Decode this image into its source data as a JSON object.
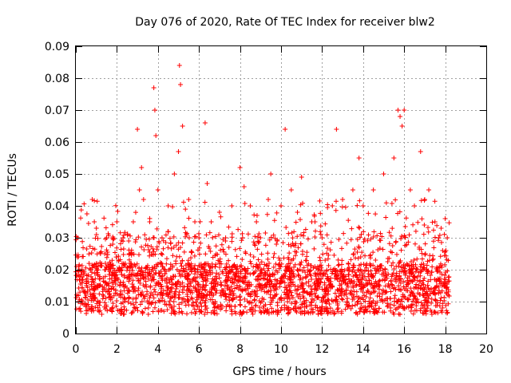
{
  "chart_data": {
    "type": "scatter",
    "title": "Day 076 of 2020, Rate Of TEC Index for receiver blw2",
    "xlabel": "GPS time / hours",
    "ylabel": "ROTI / TECUs",
    "xlim": [
      0,
      20
    ],
    "ylim": [
      0,
      0.09
    ],
    "xticks": [
      "0",
      "2",
      "4",
      "6",
      "8",
      "10",
      "12",
      "14",
      "16",
      "18",
      "20"
    ],
    "yticks": [
      "0",
      "0.01",
      "0.02",
      "0.03",
      "0.04",
      "0.05",
      "0.06",
      "0.07",
      "0.08",
      "0.09"
    ],
    "grid": true,
    "marker": "+",
    "color": "#ff0000",
    "data_range_hours": [
      0,
      18.2
    ],
    "series": [
      {
        "name": "ROTI",
        "note": "dense scatter; representative points read from the figure",
        "x": [
          0.1,
          0.3,
          0.5,
          0.8,
          0.9,
          1.0,
          1.2,
          1.5,
          1.8,
          2.0,
          2.3,
          2.6,
          2.8,
          3.0,
          3.1,
          3.2,
          3.3,
          3.6,
          3.8,
          3.85,
          3.9,
          4.0,
          4.2,
          4.5,
          4.8,
          5.0,
          5.05,
          5.1,
          5.2,
          5.5,
          5.8,
          6.0,
          6.3,
          6.4,
          6.6,
          7.0,
          7.3,
          7.6,
          8.0,
          8.2,
          8.5,
          8.8,
          9.0,
          9.5,
          10.0,
          10.2,
          10.5,
          10.8,
          11.0,
          11.5,
          12.0,
          12.5,
          12.7,
          13.0,
          13.5,
          13.8,
          14.0,
          14.5,
          15.0,
          15.5,
          15.7,
          15.8,
          15.9,
          16.0,
          16.3,
          16.5,
          16.8,
          17.0,
          17.2,
          17.5,
          17.8,
          18.0,
          18.1
        ],
        "y": [
          0.03,
          0.02,
          0.012,
          0.042,
          0.035,
          0.033,
          0.025,
          0.03,
          0.028,
          0.035,
          0.03,
          0.025,
          0.035,
          0.064,
          0.045,
          0.052,
          0.042,
          0.035,
          0.077,
          0.07,
          0.062,
          0.045,
          0.03,
          0.04,
          0.05,
          0.057,
          0.084,
          0.078,
          0.065,
          0.042,
          0.035,
          0.03,
          0.066,
          0.047,
          0.035,
          0.038,
          0.03,
          0.04,
          0.052,
          0.046,
          0.04,
          0.035,
          0.03,
          0.05,
          0.04,
          0.064,
          0.045,
          0.038,
          0.049,
          0.035,
          0.03,
          0.04,
          0.064,
          0.042,
          0.045,
          0.055,
          0.04,
          0.045,
          0.05,
          0.055,
          0.07,
          0.068,
          0.065,
          0.07,
          0.045,
          0.04,
          0.057,
          0.042,
          0.045,
          0.035,
          0.033,
          0.036,
          0.03
        ]
      }
    ]
  }
}
